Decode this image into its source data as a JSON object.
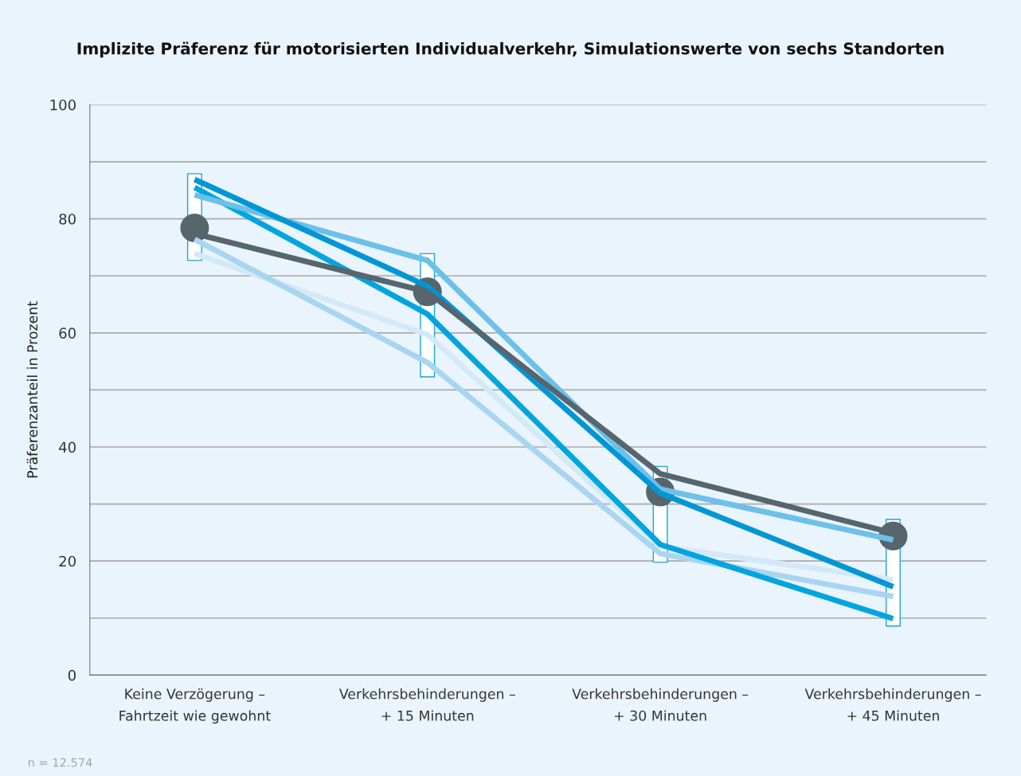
{
  "chart_data": {
    "type": "line",
    "title": "Implizite Präferenz für motorisierten Individualverkehr, Simulationswerte von sechs Standorten",
    "ylabel": "Präferenzanteil in Prozent",
    "categories": [
      "Keine Verzögerung –\nFahrtzeit wie gewohnt",
      "Verkehrsbehinderungen –\n+ 15 Minuten",
      "Verkehrsbehinderungen –\n+ 30 Minuten",
      "Verkehrsbehinderungen –\n+ 45 Minuten"
    ],
    "ylim": [
      0,
      100
    ],
    "yticks": [
      0,
      {
        "value": 10,
        "label": null
      },
      20,
      {
        "value": 30,
        "label": null
      },
      40,
      {
        "value": 50,
        "label": null
      },
      60,
      {
        "value": 70,
        "label": null
      },
      80,
      {
        "value": 90,
        "label": null
      },
      100
    ],
    "grid": "y",
    "legend": false,
    "series": [
      {
        "color": "#d4e9f8",
        "values": [
          73.9,
          59.7,
          22.6,
          16.7
        ]
      },
      {
        "color": "#a8d5f0",
        "values": [
          76.4,
          54.8,
          21.3,
          13.8
        ]
      },
      {
        "color": "#00a5e0",
        "values": [
          85.5,
          63.3,
          22.9,
          9.9
        ]
      },
      {
        "color": "#6cc0ea",
        "values": [
          84.2,
          72.7,
          32.6,
          23.7
        ]
      },
      {
        "color": "#0096d6",
        "values": [
          86.9,
          68.2,
          31.9,
          15.5
        ]
      },
      {
        "color": "#57656c",
        "values": [
          77.4,
          67.2,
          35.3,
          24.9
        ]
      },
      {
        "type": "bar",
        "color": "#ffffff",
        "base": [
          72.7,
          52.3,
          19.8,
          8.6
        ],
        "values": [
          15.2,
          21.6,
          16.8,
          18.7
        ]
      },
      {
        "type": "scatter",
        "color": "#57656c",
        "marker": "circle",
        "values": [
          78.4,
          67.2,
          32.1,
          24.4
        ]
      }
    ],
    "annotations": [
      "n = 12.574"
    ]
  }
}
